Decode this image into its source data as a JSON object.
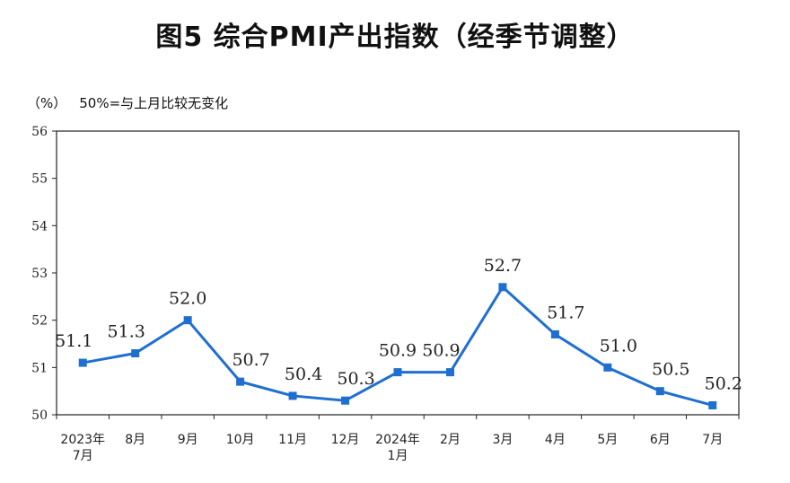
{
  "title": "图5  综合PMI产出指数（经季节调整）",
  "unit_note": "（%）",
  "baseline_note": "50%=与上月比较无变化",
  "chart_data": {
    "type": "line",
    "title": "图5  综合PMI产出指数（经季节调整）",
    "ylabel": "（%）",
    "ylim": [
      50,
      56
    ],
    "yticks": [
      "50",
      "51",
      "52",
      "53",
      "54",
      "55",
      "56"
    ],
    "categories": [
      [
        "2023年",
        "7月"
      ],
      [
        "8月"
      ],
      [
        "9月"
      ],
      [
        "10月"
      ],
      [
        "11月"
      ],
      [
        "12月"
      ],
      [
        "2024年",
        "1月"
      ],
      [
        "2月"
      ],
      [
        "3月"
      ],
      [
        "4月"
      ],
      [
        "5月"
      ],
      [
        "6月"
      ],
      [
        "7月"
      ]
    ],
    "series": [
      {
        "values": [
          51.1,
          51.3,
          52.0,
          50.7,
          50.4,
          50.3,
          50.9,
          50.9,
          52.7,
          51.7,
          51.0,
          50.5,
          50.2
        ],
        "labels": [
          "51.1",
          "51.3",
          "52.0",
          "50.7",
          "50.4",
          "50.3",
          "50.9",
          "50.9",
          "52.7",
          "51.7",
          "51.0",
          "50.5",
          "50.2"
        ],
        "color": "#1f6fd1"
      }
    ],
    "grid": false,
    "legend": "none"
  }
}
